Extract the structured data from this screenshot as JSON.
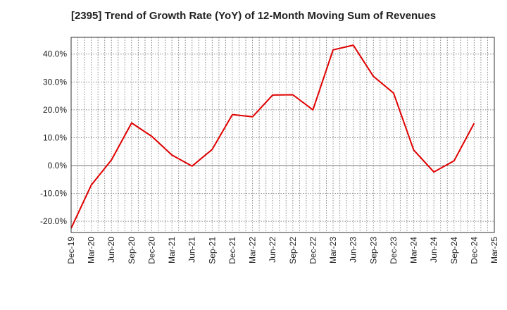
{
  "chart_data": {
    "type": "line",
    "title": "[2395]  Trend of Growth Rate (YoY) of 12-Month Moving Sum of Revenues",
    "xlabel": "",
    "ylabel": "",
    "y_unit": "%",
    "ylim": [
      -24,
      46
    ],
    "yticks": [
      -20,
      -10,
      0,
      10,
      20,
      30,
      40
    ],
    "ytick_labels": [
      "-20.0%",
      "-10.0%",
      "0.0%",
      "10.0%",
      "20.0%",
      "30.0%",
      "40.0%"
    ],
    "x_tick_labels": [
      "Dec-19",
      "Mar-20",
      "Jun-20",
      "Sep-20",
      "Dec-20",
      "Mar-21",
      "Jun-21",
      "Sep-21",
      "Dec-21",
      "Mar-22",
      "Jun-22",
      "Sep-22",
      "Dec-22",
      "Mar-23",
      "Jun-23",
      "Sep-23",
      "Dec-23",
      "Mar-24",
      "Jun-24",
      "Sep-24",
      "Dec-24",
      "Mar-25"
    ],
    "grid": true,
    "line_color": "#e00000",
    "series": [
      {
        "x": [
          "Dec-19",
          "Mar-20",
          "Jun-20",
          "Sep-20",
          "Dec-20",
          "Mar-21",
          "Jun-21",
          "Sep-21",
          "Dec-21",
          "Mar-22",
          "Jun-22",
          "Sep-22",
          "Dec-22",
          "Mar-23",
          "Jun-23",
          "Sep-23",
          "Dec-23",
          "Mar-24",
          "Jun-24",
          "Sep-24",
          "Dec-24"
        ],
        "values": [
          -22.5,
          -7.0,
          2.0,
          15.3,
          10.5,
          3.8,
          -0.2,
          5.8,
          18.3,
          17.5,
          25.3,
          25.4,
          20.0,
          41.5,
          43.2,
          32.0,
          26.0,
          5.6,
          -2.3,
          1.7,
          15.2
        ]
      }
    ]
  }
}
